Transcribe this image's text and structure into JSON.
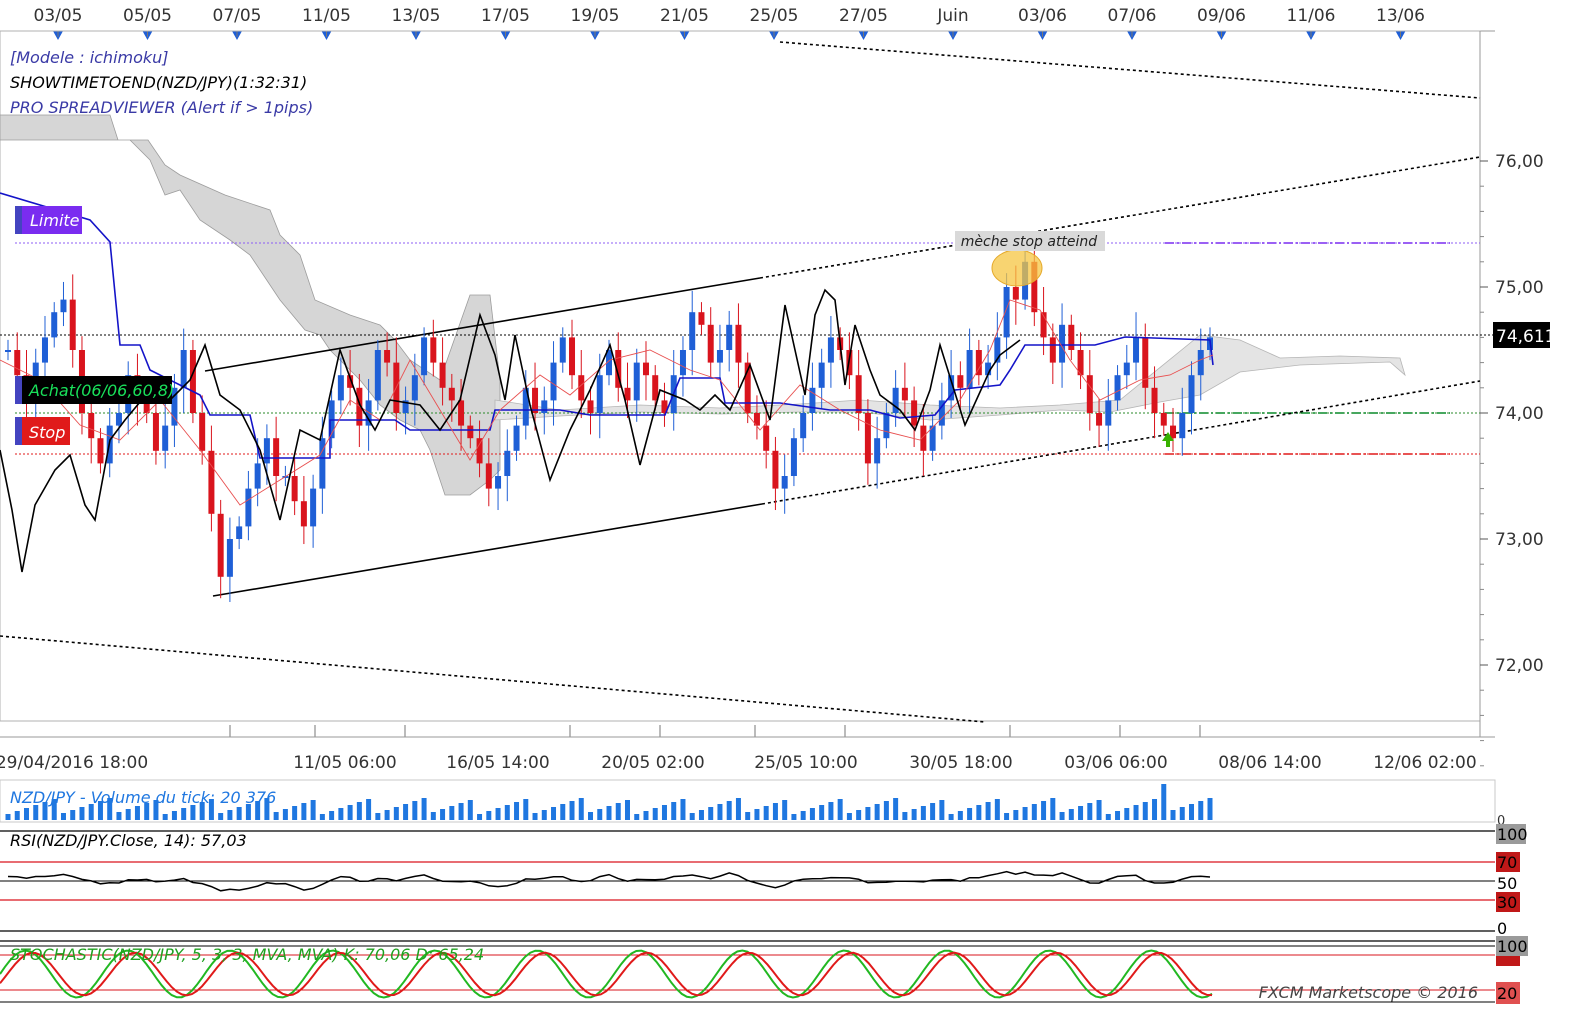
{
  "top_dates": [
    "03/05",
    "05/05",
    "07/05",
    "11/05",
    "13/05",
    "17/05",
    "19/05",
    "21/05",
    "25/05",
    "27/05",
    "Juin",
    "03/06",
    "07/06",
    "09/06",
    "11/06",
    "13/06"
  ],
  "bottom_dates": [
    "29/04/2016 18:00",
    "11/05 06:00",
    "16/05 14:00",
    "20/05 02:00",
    "25/05 10:00",
    "30/05 18:00",
    "03/06 06:00",
    "08/06 14:00",
    "12/06 02:00"
  ],
  "indicators": {
    "model": "[Modele : ichimoku]",
    "timer": "SHOWTIMETOEND(NZD/JPY)(1:32:31)",
    "spread": "PRO SPREADVIEWER (Alert if > 1pips)"
  },
  "order_tags": {
    "limit": "Limite",
    "buy": "Achat(06/06,60,8)",
    "stop": "Stop"
  },
  "annotation": "mèche stop atteind",
  "price_labels": [
    "76,00",
    "75,00",
    "74,00",
    "73,00",
    "72,00"
  ],
  "current_price": "74,611",
  "volume": {
    "title": "NZD/JPY - Volume du tick: 20 376",
    "zero": "0"
  },
  "rsi": {
    "title": "RSI(NZD/JPY.Close, 14): 57,03",
    "levels": [
      "100",
      "70",
      "50",
      "30",
      "0"
    ]
  },
  "stoch": {
    "title": "STOCHASTIC(NZD/JPY, 5, 3, 3, MVA, MVA)   K: 70,06   D: 65,24",
    "levels": [
      "100",
      "80",
      "20"
    ]
  },
  "footer": "FXCM Marketscope © 2016",
  "colors": {
    "up": "#1f5fd6",
    "down": "#d9141d",
    "kijun": "#1414c8",
    "tenkan": "#e34040",
    "chikou": "#000000",
    "cloud": "#c8c8c8",
    "limit": "#7a2cf0",
    "buy": "#0a8a2a",
    "stop": "#e01a1a"
  },
  "chart_data": {
    "type": "candlestick",
    "instrument": "NZD/JPY",
    "ylim": [
      71.5,
      76.6
    ],
    "limit_level": 75.35,
    "buy_level": 74.0,
    "stop_level": 73.68,
    "current": 74.611,
    "closes": [
      74.5,
      74.3,
      74.1,
      74.4,
      74.6,
      74.8,
      74.9,
      74.5,
      74.0,
      73.8,
      73.6,
      73.9,
      74.0,
      74.3,
      74.1,
      74.0,
      73.7,
      73.9,
      74.2,
      74.5,
      74.0,
      73.7,
      73.2,
      72.7,
      73.0,
      73.1,
      73.4,
      73.6,
      73.8,
      73.5,
      73.5,
      73.3,
      73.1,
      73.4,
      73.8,
      74.1,
      74.3,
      74.2,
      73.9,
      74.1,
      74.5,
      74.4,
      74.0,
      74.1,
      74.3,
      74.6,
      74.4,
      74.2,
      74.1,
      73.9,
      73.8,
      73.6,
      73.4,
      73.5,
      73.7,
      73.9,
      74.2,
      74.0,
      74.1,
      74.4,
      74.6,
      74.3,
      74.1,
      74.0,
      74.3,
      74.5,
      74.2,
      74.1,
      74.4,
      74.3,
      74.1,
      74.0,
      74.3,
      74.5,
      74.8,
      74.7,
      74.4,
      74.5,
      74.7,
      74.4,
      74.0,
      73.9,
      73.7,
      73.4,
      73.5,
      73.8,
      74.0,
      74.2,
      74.4,
      74.6,
      74.5,
      74.3,
      74.0,
      73.6,
      73.8,
      74.0,
      74.2,
      74.1,
      73.9,
      73.7,
      73.9,
      74.1,
      74.3,
      74.2,
      74.5,
      74.3,
      74.4,
      74.6,
      75.0,
      74.9,
      75.2,
      74.8,
      74.6,
      74.4,
      74.7,
      74.5,
      74.3,
      74.0,
      73.9,
      74.1,
      74.3,
      74.4,
      74.6,
      74.2,
      74.0,
      73.9,
      73.8,
      74.0,
      74.3,
      74.5,
      74.6
    ]
  }
}
